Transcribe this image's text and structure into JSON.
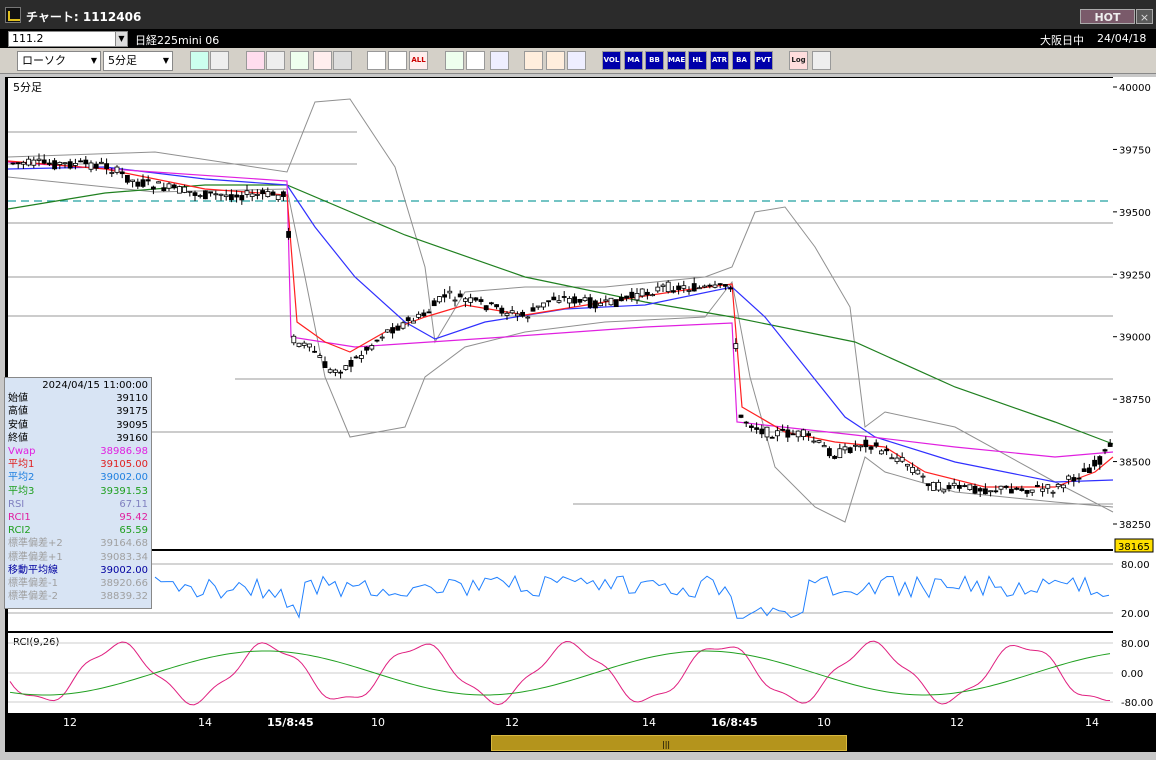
{
  "window": {
    "title": "チャート: 1112406",
    "hot_label": "HOT",
    "close_label": "×"
  },
  "symbol_bar": {
    "symbol_value": "111.2",
    "symbol_name": "日経225mini 06",
    "market_status": "大阪日中",
    "date": "24/04/18"
  },
  "toolbar": {
    "chart_type": "ローソク",
    "period": "5分足",
    "buttons": [
      {
        "name": "zoom-icon",
        "label": ""
      },
      {
        "name": "layout-icon",
        "label": ""
      },
      {
        "name": "chart-tool-1-icon",
        "label": ""
      },
      {
        "name": "chart-tool-2-icon",
        "label": ""
      },
      {
        "name": "chart-tool-3-icon",
        "label": ""
      },
      {
        "name": "chart-tool-4-icon",
        "label": ""
      },
      {
        "name": "chart-tool-5-icon",
        "label": ""
      },
      {
        "name": "candle-tool-1-icon",
        "label": ""
      },
      {
        "name": "candle-tool-2-icon",
        "label": ""
      },
      {
        "name": "all-button",
        "label": "ALL"
      },
      {
        "name": "draw-line-icon",
        "label": ""
      },
      {
        "name": "cursor-icon",
        "label": ""
      },
      {
        "name": "arrow-icon",
        "label": ""
      },
      {
        "name": "settings-icon",
        "label": ""
      },
      {
        "name": "brush-icon",
        "label": ""
      },
      {
        "name": "color-icon",
        "label": ""
      },
      {
        "name": "vol-button",
        "label": "VOL"
      },
      {
        "name": "ma-button",
        "label": "MA"
      },
      {
        "name": "bb-button",
        "label": "BB"
      },
      {
        "name": "mae-button",
        "label": "MAE"
      },
      {
        "name": "hl-button",
        "label": "HL"
      },
      {
        "name": "atr-button",
        "label": "ATR"
      },
      {
        "name": "ba-button",
        "label": "BA"
      },
      {
        "name": "pvt-button",
        "label": "PVT"
      },
      {
        "name": "log-button",
        "label": "Log"
      },
      {
        "name": "export-icon",
        "label": ""
      }
    ]
  },
  "chart": {
    "timeframe_label": "5分足",
    "price_axis": [
      "40000",
      "39750",
      "39500",
      "39250",
      "39000",
      "38750",
      "38500",
      "38250"
    ],
    "current_price_tag": "38165",
    "rsi_axis": [
      "80.00",
      "20.00"
    ],
    "rci_label": "RCI(9,26)",
    "rci_axis": [
      "80.00",
      "0.00",
      "-80.00"
    ],
    "x_axis": [
      "12",
      "14",
      "15/8:45",
      "10",
      "12",
      "14",
      "16/8:45",
      "10",
      "12",
      "14"
    ],
    "colors": {
      "bg": "#000000",
      "candle_up": "#ffffff",
      "candle_down": "#000000",
      "ma1": "#ff2020",
      "ma2": "#3030ff",
      "ma3": "#208020",
      "vwap": "#e020e0",
      "bb": "#909090",
      "hline": "#9a9a9a",
      "dashed": "#20a0a0",
      "rsi": "#2080ff",
      "rci1": "#e02080",
      "rci2": "#20a020"
    }
  },
  "info_panel": {
    "datetime": "2024/04/15  11:00:00",
    "rows": [
      {
        "label": "始値",
        "value": "39110",
        "color": "#000000"
      },
      {
        "label": "高値",
        "value": "39175",
        "color": "#000000"
      },
      {
        "label": "安値",
        "value": "39095",
        "color": "#000000"
      },
      {
        "label": "終値",
        "value": "39160",
        "color": "#000000"
      },
      {
        "label": "Vwap",
        "value": "38986.98",
        "color": "#e020e0"
      },
      {
        "label": "平均1",
        "value": "39105.00",
        "color": "#e02020"
      },
      {
        "label": "平均2",
        "value": "39002.00",
        "color": "#2080e0"
      },
      {
        "label": "平均3",
        "value": "39391.53",
        "color": "#20a020"
      },
      {
        "label": "RSI",
        "value": "67.11",
        "color": "#8080c0"
      },
      {
        "label": "RCI1",
        "value": "95.42",
        "color": "#e020a0"
      },
      {
        "label": "RCI2",
        "value": "65.59",
        "color": "#20a020"
      },
      {
        "label": "標準偏差+2",
        "value": "39164.68",
        "color": "#a0a0a0"
      },
      {
        "label": "標準偏差+1",
        "value": "39083.34",
        "color": "#a0a0a0"
      },
      {
        "label": "移動平均線",
        "value": "39002.00",
        "color": "#0000a0"
      },
      {
        "label": "標準偏差-1",
        "value": "38920.66",
        "color": "#a0a0a0"
      },
      {
        "label": "標準偏差-2",
        "value": "38839.32",
        "color": "#a0a0a0"
      }
    ]
  },
  "scrollbar": {
    "grip": "|||"
  }
}
